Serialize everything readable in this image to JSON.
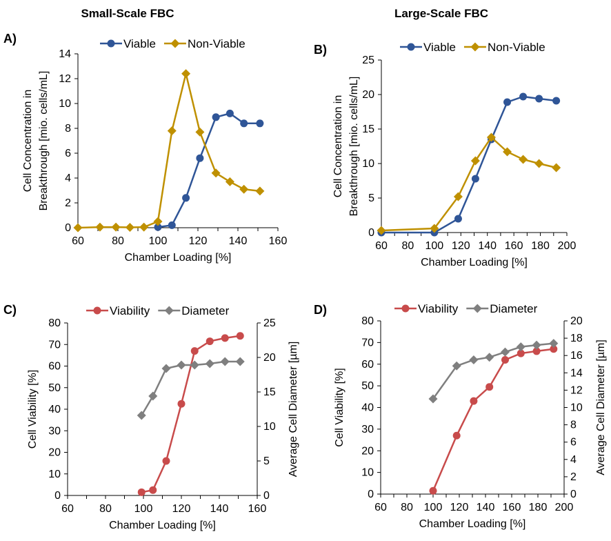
{
  "headers": {
    "left": "Small-Scale FBC",
    "right": "Large-Scale FBC"
  },
  "colors": {
    "viable": "#2F5597",
    "nonviable": "#BF9000",
    "viability": "#C84B4B",
    "diameter": "#7F7F7F"
  },
  "chart_data": [
    {
      "panel": "A)",
      "type": "line",
      "xlabel": "Chamber Loading [%]",
      "ylabel": [
        "Cell Concentration in",
        "Breakthrough [mio. cells/mL]"
      ],
      "xlim": [
        60,
        160
      ],
      "xstep": 20,
      "ylim": [
        0,
        14
      ],
      "ystep": 2,
      "legend": "top",
      "series": [
        {
          "name": "Viable",
          "marker": "circle",
          "color_key": "viable",
          "x": [
            100,
            107,
            114,
            121,
            129,
            136,
            143,
            151
          ],
          "y": [
            0.05,
            0.2,
            2.4,
            5.6,
            8.9,
            9.2,
            8.4,
            8.4
          ]
        },
        {
          "name": "Non-Viable",
          "marker": "diamond",
          "color_key": "nonviable",
          "x": [
            60,
            71,
            79,
            86,
            93,
            100,
            107,
            114,
            121,
            129,
            136,
            143,
            151
          ],
          "y": [
            0,
            0.05,
            0.05,
            0.03,
            0.05,
            0.5,
            7.8,
            12.4,
            7.7,
            4.4,
            3.7,
            3.1,
            2.95
          ]
        }
      ]
    },
    {
      "panel": "B)",
      "type": "line",
      "xlabel": "Chamber Loading [%]",
      "ylabel": [
        "Cell Concentration in",
        "Breakthrough [mio. cells/mL]"
      ],
      "xlim": [
        60,
        200
      ],
      "xstep": 20,
      "ylim": [
        0,
        25
      ],
      "ystep": 5,
      "legend": "top",
      "series": [
        {
          "name": "Viable",
          "marker": "circle",
          "color_key": "viable",
          "x": [
            60,
            100,
            118,
            131,
            143,
            155,
            167,
            179,
            192
          ],
          "y": [
            0,
            0,
            2.0,
            7.8,
            13.5,
            18.9,
            19.7,
            19.4,
            19.1
          ]
        },
        {
          "name": "Non-Viable",
          "marker": "diamond",
          "color_key": "nonviable",
          "x": [
            60,
            100,
            118,
            131,
            143,
            155,
            167,
            179,
            192
          ],
          "y": [
            0.3,
            0.6,
            5.2,
            10.4,
            13.8,
            11.7,
            10.6,
            10.0,
            9.4
          ]
        }
      ]
    },
    {
      "panel": "C)",
      "type": "line",
      "xlabel": "Chamber Loading [%]",
      "ylabel": [
        "Cell Viability [%]"
      ],
      "y2label": "Average Cell Diameter [µm]",
      "xlim": [
        60,
        160
      ],
      "xstep": 20,
      "ylim": [
        0,
        80
      ],
      "ystep": 10,
      "y2lim": [
        0,
        25
      ],
      "y2step": 5,
      "legend": "top",
      "series": [
        {
          "name": "Viability",
          "marker": "circle",
          "color_key": "viability",
          "axis": "y",
          "x": [
            99,
            105,
            112,
            120,
            127,
            135,
            143,
            151
          ],
          "y": [
            1.5,
            2.5,
            16,
            42.5,
            67,
            71.5,
            73,
            74
          ]
        },
        {
          "name": "Diameter",
          "marker": "diamond",
          "color_key": "diameter",
          "axis": "y2",
          "x": [
            99,
            105,
            112,
            120,
            127,
            135,
            143,
            151
          ],
          "y": [
            11.6,
            14.4,
            18.4,
            18.9,
            18.9,
            19.1,
            19.4,
            19.4
          ]
        }
      ]
    },
    {
      "panel": "D)",
      "type": "line",
      "xlabel": "Chamber Loading [%]",
      "ylabel": [
        "Cell Viability [%]"
      ],
      "y2label": "Average Cell Diameter [µm]",
      "xlim": [
        60,
        200
      ],
      "xstep": 20,
      "ylim": [
        0,
        80
      ],
      "ystep": 10,
      "y2lim": [
        0,
        20
      ],
      "y2step": 2,
      "legend": "top",
      "series": [
        {
          "name": "Viability",
          "marker": "circle",
          "color_key": "viability",
          "axis": "y",
          "x": [
            100,
            118,
            131,
            143,
            155,
            167,
            179,
            192
          ],
          "y": [
            1.5,
            27,
            43,
            49.5,
            62,
            65,
            66,
            67
          ]
        },
        {
          "name": "Diameter",
          "marker": "diamond",
          "color_key": "diameter",
          "axis": "y2",
          "x": [
            100,
            118,
            131,
            143,
            155,
            167,
            179,
            192
          ],
          "y": [
            11,
            14.8,
            15.5,
            15.8,
            16.4,
            17,
            17.2,
            17.4
          ]
        }
      ]
    }
  ]
}
